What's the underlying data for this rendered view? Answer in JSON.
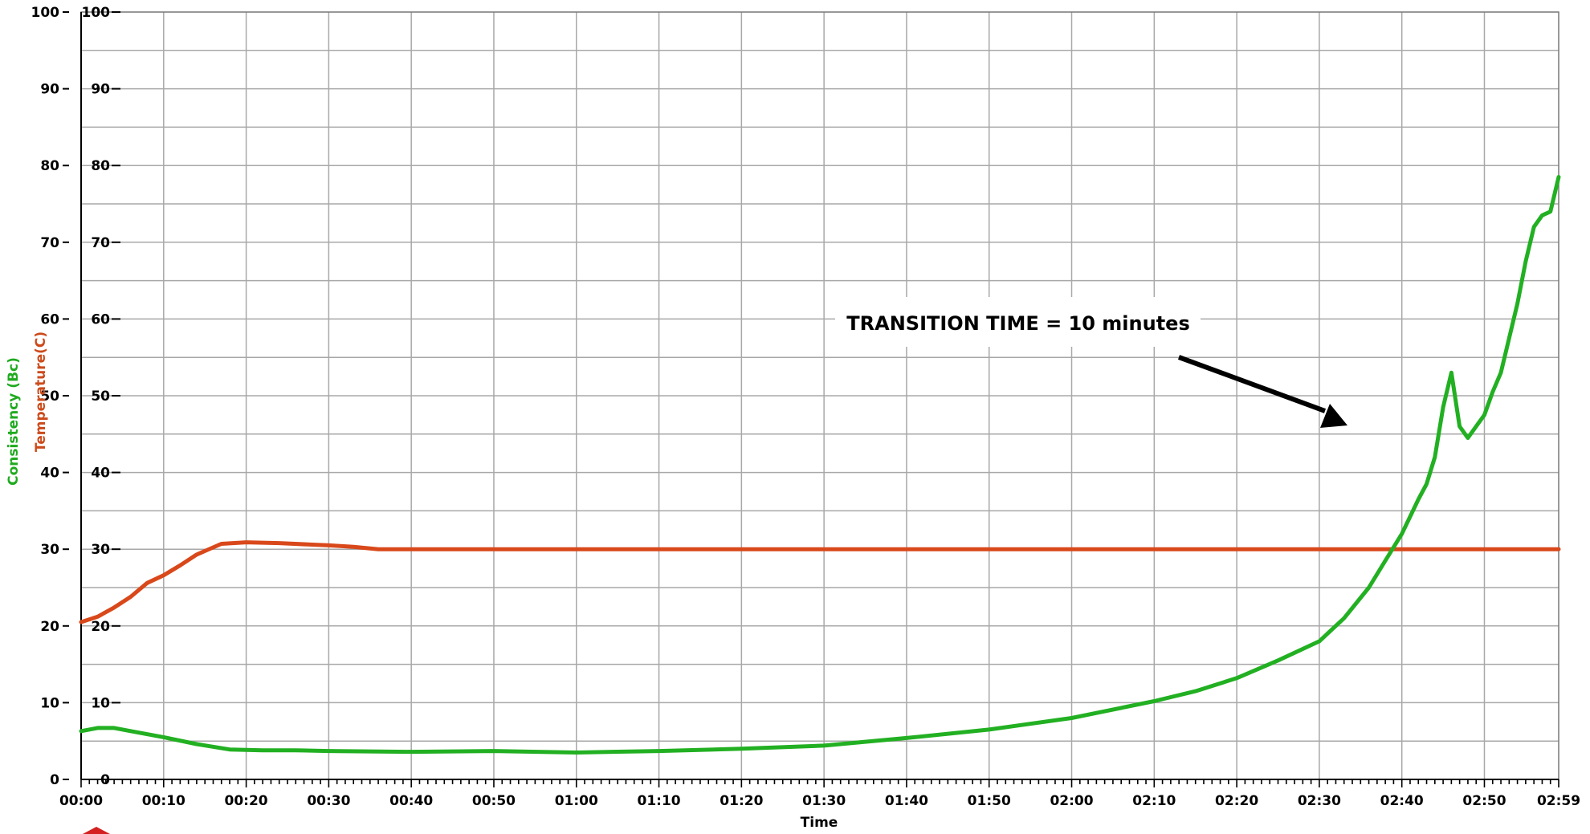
{
  "chart_data": {
    "type": "line",
    "xlabel": "Time",
    "x_ticks": [
      "00:00",
      "00:10",
      "00:20",
      "00:30",
      "00:40",
      "00:50",
      "01:00",
      "01:10",
      "01:20",
      "01:30",
      "01:40",
      "01:50",
      "02:00",
      "02:10",
      "02:20",
      "02:30",
      "02:40",
      "02:50",
      "02:59"
    ],
    "x_range_minutes": [
      0,
      179
    ],
    "y_axes": [
      {
        "label": "Consistency (Bc)",
        "range": [
          0,
          100
        ],
        "color": "#1faa1f",
        "ticks": [
          "0",
          "10",
          "20",
          "30",
          "40",
          "50",
          "60",
          "70",
          "80",
          "90",
          "100"
        ]
      },
      {
        "label": "Temperature(C)",
        "range": [
          0,
          100
        ],
        "color": "#cc4a1a",
        "ticks": [
          "0",
          "10",
          "20",
          "30",
          "40",
          "50",
          "60",
          "70",
          "80",
          "90",
          "100"
        ]
      }
    ],
    "grid": true,
    "series": [
      {
        "axis": "Temperature(C)",
        "color": "#d9481a",
        "x": [
          0,
          2,
          4,
          6,
          8,
          10,
          12,
          14,
          17,
          20,
          24,
          28,
          30,
          33,
          36,
          40,
          179
        ],
        "y": [
          20.5,
          21.2,
          22.4,
          23.8,
          25.6,
          26.6,
          27.9,
          29.3,
          30.7,
          30.9,
          30.8,
          30.6,
          30.5,
          30.3,
          30.0,
          30.0,
          30.0
        ]
      },
      {
        "axis": "Consistency (Bc)",
        "color": "#22b022",
        "x": [
          0,
          2,
          4,
          6,
          10,
          14,
          18,
          22,
          26,
          30,
          40,
          50,
          60,
          70,
          80,
          90,
          100,
          110,
          120,
          130,
          135,
          140,
          145,
          150,
          153,
          156,
          158,
          160,
          162,
          163,
          164,
          165,
          166,
          167,
          168,
          169,
          170,
          171,
          172,
          173,
          174,
          175,
          176,
          177,
          178,
          179
        ],
        "y": [
          6.3,
          6.7,
          6.7,
          6.3,
          5.5,
          4.6,
          3.9,
          3.8,
          3.8,
          3.7,
          3.6,
          3.7,
          3.5,
          3.7,
          4.0,
          4.4,
          5.4,
          6.5,
          8.0,
          10.2,
          11.5,
          13.2,
          15.5,
          18.0,
          21.0,
          25.0,
          28.5,
          32.0,
          36.5,
          38.5,
          42.0,
          48.5,
          53.0,
          46.0,
          44.5,
          46.0,
          47.5,
          50.5,
          53.0,
          57.5,
          62.0,
          67.5,
          72.0,
          73.5,
          74.0,
          78.5
        ]
      }
    ],
    "annotations": [
      {
        "text": "TRANSITION TIME = 10 minutes"
      }
    ]
  }
}
